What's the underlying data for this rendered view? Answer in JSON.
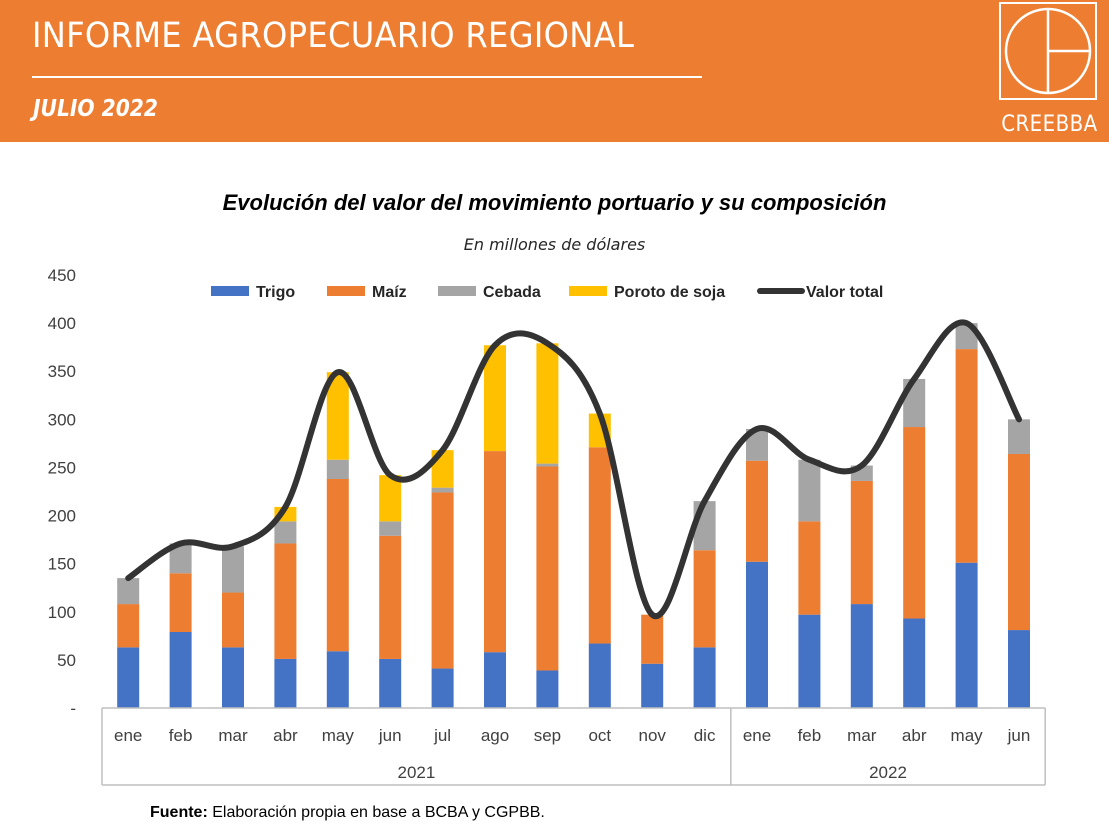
{
  "header": {
    "title": "INFORME AGROPECUARIO REGIONAL",
    "date": "JULIO 2022",
    "logo_text": "CREEBBA"
  },
  "colors": {
    "header_bg": "#ED7D31",
    "trigo": "#4472C4",
    "maiz": "#ED7D31",
    "cebada": "#A5A5A5",
    "soja": "#FFC000",
    "total": "#333333"
  },
  "chart_data": {
    "type": "bar",
    "stacked": true,
    "title": "Evolución del valor del movimiento portuario y su composición",
    "subtitle": "En millones de dólares",
    "categories": [
      "ene",
      "feb",
      "mar",
      "abr",
      "may",
      "jun",
      "jul",
      "ago",
      "sep",
      "oct",
      "nov",
      "dic",
      "ene",
      "feb",
      "mar",
      "abr",
      "may",
      "jun"
    ],
    "groups": [
      {
        "label": "2021",
        "count": 12
      },
      {
        "label": "2022",
        "count": 6
      }
    ],
    "series": [
      {
        "name": "Trigo",
        "values": [
          63,
          79,
          63,
          51,
          59,
          51,
          41,
          58,
          39,
          67,
          46,
          63,
          152,
          97,
          108,
          93,
          151,
          81
        ]
      },
      {
        "name": "Maíz",
        "values": [
          45,
          61,
          57,
          120,
          179,
          128,
          183,
          209,
          212,
          204,
          51,
          101,
          105,
          97,
          128,
          199,
          222,
          183
        ]
      },
      {
        "name": "Cebada",
        "values": [
          27,
          31,
          48,
          23,
          20,
          15,
          5,
          0,
          3,
          0,
          0,
          51,
          33,
          64,
          16,
          50,
          27,
          36
        ]
      },
      {
        "name": "Poroto de soja",
        "values": [
          0,
          0,
          0,
          15,
          91,
          48,
          39,
          110,
          125,
          35,
          0,
          0,
          0,
          0,
          0,
          0,
          0,
          0
        ]
      }
    ],
    "line_series": {
      "name": "Valor total",
      "values": [
        135,
        171,
        168,
        209,
        349,
        242,
        268,
        377,
        379,
        306,
        97,
        215,
        290,
        258,
        252,
        342,
        400,
        300
      ]
    },
    "yticks": [
      "-",
      "50",
      "100",
      "150",
      "200",
      "250",
      "300",
      "350",
      "400",
      "450"
    ],
    "ylim": [
      0,
      450
    ],
    "legend": [
      "Trigo",
      "Maíz",
      "Cebada",
      "Poroto de soja",
      "Valor total"
    ],
    "legend_position": "top"
  },
  "footer": {
    "source_label": "Fuente:",
    "source_text": " Elaboración propia en base a BCBA y CGPBB."
  }
}
